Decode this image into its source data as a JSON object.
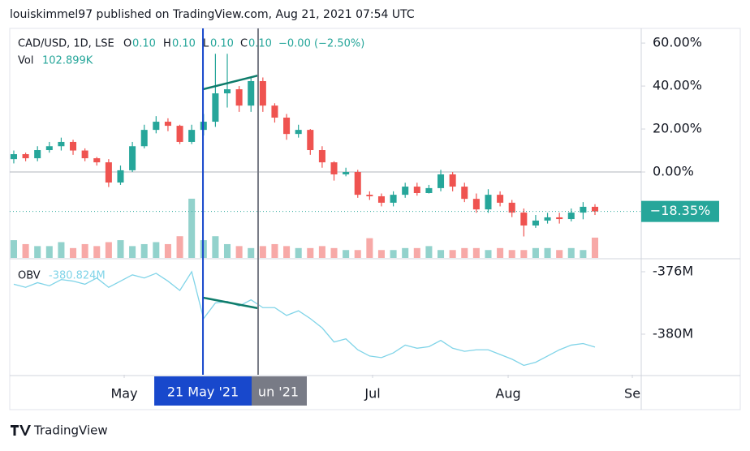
{
  "header": {
    "title": "louiskimmel97 published on TradingView.com, Aug 21, 2021 07:54 UTC"
  },
  "footer": {
    "brand": "TradingView"
  },
  "chart_data": {
    "type": "candlestick",
    "legend": {
      "symbol": "CAD/USD, 1D, LSE",
      "o_label": "O",
      "o": "0.10",
      "h_label": "H",
      "h": "0.10",
      "l_label": "L",
      "l": "0.10",
      "c_label": "C",
      "c": "0.10",
      "change": "−0.00 (−2.50%)"
    },
    "categories": [
      null,
      null,
      null,
      null,
      null,
      null,
      null,
      null,
      null,
      null,
      null,
      null,
      null,
      null,
      null,
      null,
      null,
      null,
      null,
      null,
      null,
      null,
      null,
      null,
      null,
      null,
      null,
      null,
      null,
      null,
      null,
      null,
      null,
      null,
      null,
      null,
      null,
      null,
      null,
      null,
      null,
      null,
      null,
      null,
      null,
      null,
      null,
      null,
      null,
      null
    ],
    "open": [
      6,
      8.3,
      6.4,
      10.2,
      12,
      14,
      10,
      6.4,
      4.5,
      -4.9,
      0.8,
      12,
      19.6,
      23.4,
      21.5,
      14,
      19.6,
      23.4,
      36.6,
      38.5,
      30.9,
      42.3,
      30.9,
      25.3,
      17.7,
      19.6,
      10.2,
      4.5,
      -1.1,
      0,
      -10.6,
      -11.3,
      -14.3,
      -10.6,
      -6.8,
      -9.8,
      -7.5,
      -1.1,
      -6.8,
      -12.5,
      -17.4,
      -10.6,
      -14.3,
      -18.9,
      -24.9,
      -22.6,
      -21.1,
      -21.9,
      -18.9,
      -16.2
    ],
    "high": [
      10,
      9,
      12,
      14,
      16,
      15,
      11,
      7,
      6,
      3,
      14,
      22,
      26,
      25,
      22,
      22,
      27,
      55,
      55,
      40,
      44,
      44,
      32,
      27,
      22,
      20,
      12,
      5,
      2,
      1,
      -9,
      -10,
      -9,
      -5,
      -5,
      -6,
      1,
      0,
      -5,
      -10,
      -8,
      -9,
      -13,
      -17,
      -20,
      -19,
      -19,
      -17,
      -14,
      -15
    ],
    "low": [
      4,
      5,
      5,
      9,
      10,
      8,
      5,
      3,
      -7,
      -6,
      0,
      11,
      18,
      19,
      13,
      13,
      17,
      21,
      30,
      28,
      28,
      28,
      23,
      15,
      16,
      8,
      2,
      -4,
      -2,
      -12,
      -13,
      -16,
      -16,
      -12,
      -11,
      -10,
      -9,
      -9,
      -14,
      -19,
      -19,
      -16,
      -21,
      -30,
      -26,
      -24,
      -24,
      -23,
      -22,
      -20
    ],
    "close": [
      8.3,
      6.4,
      10.2,
      12,
      14,
      10,
      6.4,
      4.5,
      -4.9,
      0.8,
      12,
      19.6,
      23.4,
      21.5,
      14,
      19.6,
      23.4,
      36.6,
      38.5,
      30.9,
      42.3,
      30.9,
      25.3,
      17.7,
      19.6,
      10.2,
      4.5,
      -1.1,
      0,
      -10.6,
      -11.3,
      -14.3,
      -10.6,
      -6.8,
      -9.8,
      -7.5,
      -1.1,
      -6.8,
      -12.5,
      -17.4,
      -10.6,
      -14.3,
      -18.9,
      -24.9,
      -22.6,
      -21.1,
      -21.9,
      -18.9,
      -16.2,
      -18.35
    ],
    "up_color": "#26a69a",
    "down_color": "#ef5350",
    "ylim": [
      -40,
      65.7
    ],
    "yticks": [
      {
        "value": 60,
        "label": "60.00%"
      },
      {
        "value": 40,
        "label": "40.00%"
      },
      {
        "value": 20,
        "label": "20.00%"
      },
      {
        "value": 0,
        "label": "0.00%"
      }
    ],
    "zero_line": true,
    "last": {
      "value": -18.35,
      "label": "−18.35%"
    },
    "xlim": [
      -0.34,
      52.9
    ],
    "xticks": [
      {
        "value": 9.31,
        "label": "May"
      },
      {
        "value": 30.25,
        "label": "Jul"
      },
      {
        "value": 41.68,
        "label": "Aug"
      },
      {
        "value": 52.15,
        "label": "Se"
      }
    ],
    "crosshairs": [
      {
        "x": 20.6,
        "label": "un '21",
        "color": "#787b86"
      },
      {
        "x": 15.95,
        "label": "21 May '21",
        "color": "#1848cc"
      }
    ],
    "trendlines": [
      {
        "pane": "price",
        "x": [
          15.95,
          20.6
        ],
        "y": [
          38.5,
          44.9
        ]
      },
      {
        "pane": "obv",
        "x": [
          15.95,
          20.6
        ],
        "y": [
          -377.66,
          -378.34
        ]
      }
    ],
    "volume": {
      "label": "Vol",
      "value_label": "102.899K",
      "ylim": [
        0,
        1150
      ],
      "values": [
        90,
        70,
        60,
        60,
        80,
        50,
        70,
        60,
        80,
        90,
        60,
        70,
        80,
        70,
        110,
        300,
        90,
        110,
        70,
        60,
        50,
        60,
        70,
        60,
        50,
        50,
        60,
        50,
        40,
        40,
        100,
        40,
        40,
        50,
        50,
        60,
        40,
        40,
        50,
        50,
        40,
        50,
        40,
        40,
        50,
        50,
        40,
        50,
        40,
        102.899
      ]
    },
    "obv": {
      "label": "OBV",
      "value_label": "-380.824M",
      "color": "#80d4e8",
      "ylim": [
        -382.6,
        -375.22
      ],
      "yticks": [
        {
          "value": -376,
          "label": "-376M"
        },
        {
          "value": -380,
          "label": "-380M"
        }
      ],
      "values": [
        -376.8,
        -377.0,
        -376.7,
        -376.9,
        -376.5,
        -376.6,
        -376.8,
        -376.4,
        -377.0,
        -376.6,
        -376.2,
        -376.4,
        -376.1,
        -376.6,
        -377.2,
        -376.0,
        -379.0,
        -378.0,
        -377.9,
        -378.2,
        -377.8,
        -378.3,
        -378.3,
        -378.8,
        -378.5,
        -379.0,
        -379.6,
        -380.5,
        -380.3,
        -381.0,
        -381.4,
        -381.5,
        -381.2,
        -380.7,
        -380.9,
        -380.8,
        -380.4,
        -380.9,
        -381.1,
        -381.0,
        -381.0,
        -381.3,
        -381.6,
        -382.0,
        -381.8,
        -381.4,
        -381.0,
        -380.7,
        -380.6,
        -380.824
      ]
    }
  }
}
